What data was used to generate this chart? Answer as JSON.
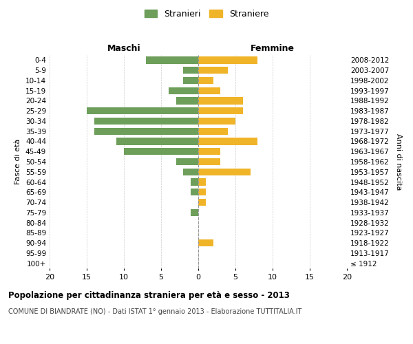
{
  "age_groups": [
    "100+",
    "95-99",
    "90-94",
    "85-89",
    "80-84",
    "75-79",
    "70-74",
    "65-69",
    "60-64",
    "55-59",
    "50-54",
    "45-49",
    "40-44",
    "35-39",
    "30-34",
    "25-29",
    "20-24",
    "15-19",
    "10-14",
    "5-9",
    "0-4"
  ],
  "birth_years": [
    "≤ 1912",
    "1913-1917",
    "1918-1922",
    "1923-1927",
    "1928-1932",
    "1933-1937",
    "1938-1942",
    "1943-1947",
    "1948-1952",
    "1953-1957",
    "1958-1962",
    "1963-1967",
    "1968-1972",
    "1973-1977",
    "1978-1982",
    "1983-1987",
    "1988-1992",
    "1993-1997",
    "1998-2002",
    "2003-2007",
    "2008-2012"
  ],
  "maschi": [
    0,
    0,
    0,
    0,
    0,
    1,
    0,
    1,
    1,
    2,
    3,
    10,
    11,
    14,
    14,
    15,
    3,
    4,
    2,
    2,
    7
  ],
  "femmine": [
    0,
    0,
    2,
    0,
    0,
    0,
    1,
    1,
    1,
    7,
    3,
    3,
    8,
    4,
    5,
    6,
    6,
    3,
    2,
    4,
    8
  ],
  "color_maschi": "#6d9e5a",
  "color_femmine_bar": "#f0b429",
  "title": "Popolazione per cittadinanza straniera per età e sesso - 2013",
  "subtitle": "COMUNE DI BIANDRATE (NO) - Dati ISTAT 1° gennaio 2013 - Elaborazione TUTTITALIA.IT",
  "xlabel_left": "Maschi",
  "xlabel_right": "Femmine",
  "ylabel": "Fasce di età",
  "ylabel_right": "Anni di nascita",
  "legend_maschi": "Stranieri",
  "legend_femmine": "Straniere",
  "xlim": 20,
  "background_color": "#ffffff",
  "grid_color": "#cccccc"
}
